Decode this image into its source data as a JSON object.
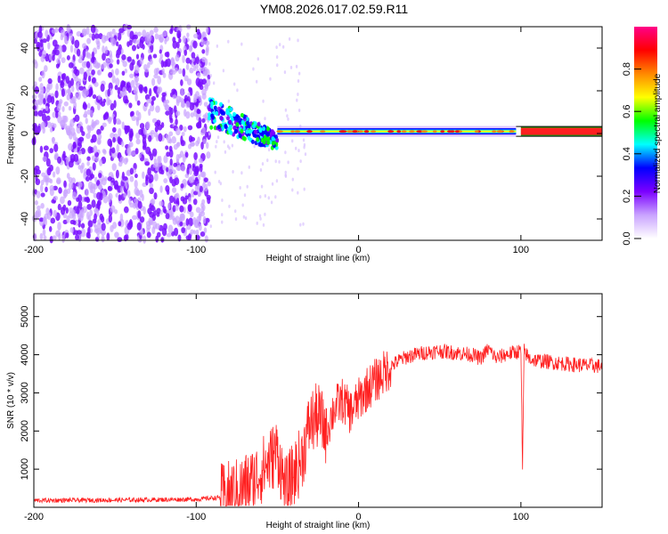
{
  "title": "YM08.2026.017.02.59.R11",
  "chart_data": [
    {
      "type": "heatmap",
      "xlabel": "Height of straight line (km)",
      "ylabel": "Frequency (Hz)",
      "xlim": [
        -200,
        150
      ],
      "ylim": [
        -50,
        50
      ],
      "xticks": [
        -200,
        -100,
        0,
        100
      ],
      "yticks": [
        -40,
        -20,
        0,
        20,
        40
      ],
      "colorbar": {
        "label": "Normalized spectral amplitude",
        "range": [
          0,
          1
        ],
        "ticks": [
          "0.0",
          "0.2",
          "0.4",
          "0.6",
          "0.8"
        ],
        "colors": [
          "#ffffff",
          "#c9a3ff",
          "#7b00ff",
          "#0000ff",
          "#00ffff",
          "#00ff00",
          "#ffff00",
          "#ff8800",
          "#ff0000",
          "#ff0088"
        ]
      },
      "bands": [
        {
          "x": [
            -200,
            -92
          ],
          "freq_center": 0,
          "freq_spread": 50,
          "amplitude": 0.1
        },
        {
          "x": [
            -92,
            -50
          ],
          "freq_center_start": 10,
          "freq_center_end": -4,
          "amplitude": 0.35
        },
        {
          "x": [
            -50,
            97
          ],
          "freq_center": 1,
          "amplitude": 0.5
        },
        {
          "x": [
            100,
            150
          ],
          "freq_center": 0,
          "amplitude": 0.95
        }
      ]
    },
    {
      "type": "line",
      "xlabel": "Height of straight line (km)",
      "ylabel": "SNR (10 * v/v)",
      "xlim": [
        -200,
        150
      ],
      "ylim": [
        0,
        5600
      ],
      "xticks": [
        -200,
        -100,
        0,
        100
      ],
      "yticks": [
        1000,
        2000,
        3000,
        4000,
        5000
      ],
      "color": "#ff2020",
      "x": [
        -200,
        -150,
        -100,
        -85,
        -75,
        -65,
        -55,
        -50,
        -45,
        -35,
        -30,
        -25,
        -20,
        -15,
        -10,
        -5,
        0,
        5,
        10,
        15,
        20,
        25,
        30,
        40,
        50,
        60,
        70,
        75,
        80,
        85,
        90,
        95,
        100,
        101,
        102,
        105,
        110,
        120,
        130,
        140,
        150
      ],
      "y": [
        180,
        190,
        210,
        260,
        400,
        700,
        1200,
        1500,
        400,
        1300,
        2200,
        2400,
        2000,
        2600,
        2800,
        2500,
        2800,
        3100,
        3300,
        3500,
        3700,
        3850,
        3950,
        4050,
        4100,
        4050,
        4000,
        3900,
        4150,
        3900,
        4000,
        4050,
        4100,
        1000,
        4100,
        3900,
        3850,
        3800,
        3750,
        3720,
        3700
      ]
    }
  ]
}
